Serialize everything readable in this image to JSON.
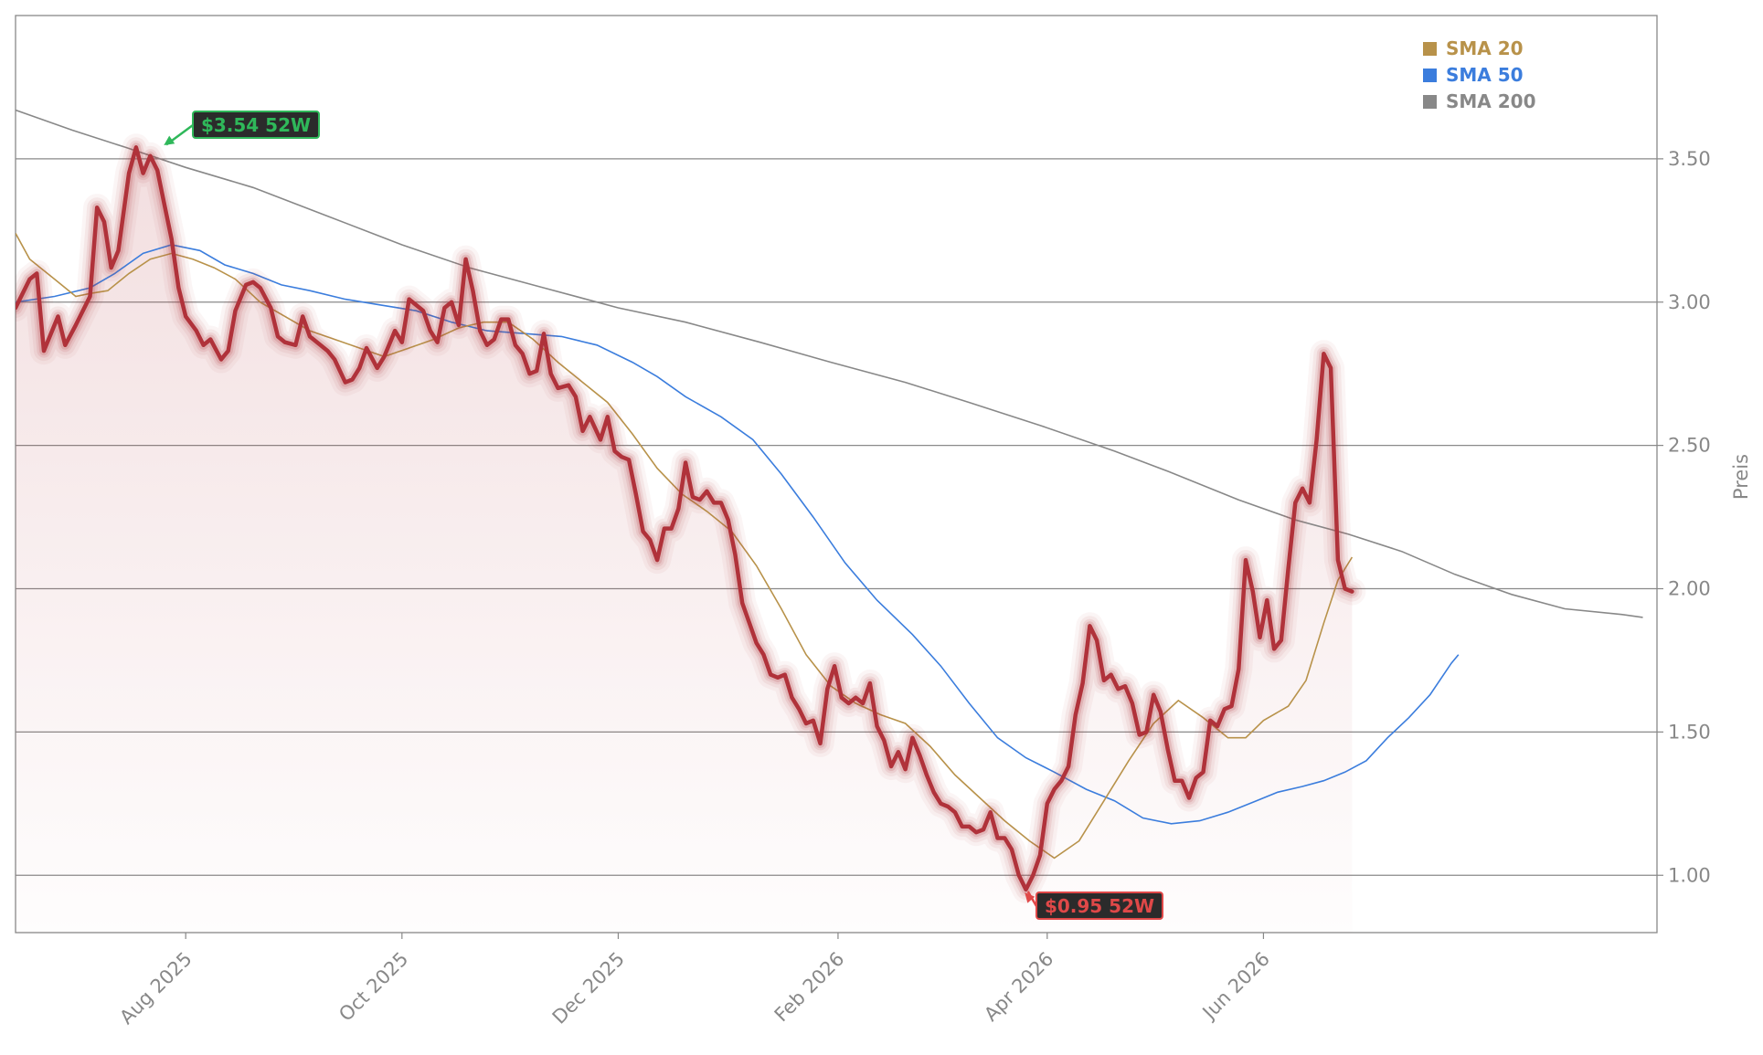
{
  "chart_data": {
    "type": "line",
    "ylabel": "Preis",
    "ylim": [
      0.8,
      4.0
    ],
    "y_ticks": [
      1.0,
      1.5,
      2.0,
      2.5,
      3.0,
      3.5
    ],
    "y_tick_labels": [
      "1.00",
      "1.50",
      "2.00",
      "2.50",
      "3.00",
      "3.50"
    ],
    "x_ticks": [
      "Aug 2025",
      "Oct 2025",
      "Dec 2025",
      "Feb 2026",
      "Apr 2026",
      "Jun 2026"
    ],
    "grid": "horizontal",
    "legend_position": "top-right",
    "colors": {
      "price": "#b0323a",
      "sma20": "#b8924a",
      "sma50": "#3b7ddd",
      "sma200": "#888888",
      "high_label": "#2fb85a",
      "low_label": "#e04848"
    },
    "legend": [
      {
        "label": "SMA 20",
        "color": "#b8924a"
      },
      {
        "label": "SMA 50",
        "color": "#3b7ddd"
      },
      {
        "label": "SMA 200",
        "color": "#888888"
      }
    ],
    "annotations": {
      "high": {
        "text": "$3.54 52W",
        "date": "2025-07-25",
        "value": 3.54
      },
      "low": {
        "text": "$0.95 52W",
        "date": "2026-03-25",
        "value": 0.95
      }
    },
    "price": [
      [
        "2025-06-14",
        2.98
      ],
      [
        "2025-06-18",
        3.08
      ],
      [
        "2025-06-20",
        3.1
      ],
      [
        "2025-06-22",
        2.83
      ],
      [
        "2025-06-26",
        2.95
      ],
      [
        "2025-06-28",
        2.85
      ],
      [
        "2025-07-01",
        2.92
      ],
      [
        "2025-07-05",
        3.02
      ],
      [
        "2025-07-07",
        3.33
      ],
      [
        "2025-07-09",
        3.28
      ],
      [
        "2025-07-11",
        3.12
      ],
      [
        "2025-07-13",
        3.18
      ],
      [
        "2025-07-16",
        3.45
      ],
      [
        "2025-07-18",
        3.54
      ],
      [
        "2025-07-20",
        3.45
      ],
      [
        "2025-07-22",
        3.51
      ],
      [
        "2025-07-24",
        3.46
      ],
      [
        "2025-07-26",
        3.34
      ],
      [
        "2025-07-28",
        3.22
      ],
      [
        "2025-07-30",
        3.05
      ],
      [
        "2025-08-01",
        2.95
      ],
      [
        "2025-08-04",
        2.9
      ],
      [
        "2025-08-06",
        2.85
      ],
      [
        "2025-08-08",
        2.87
      ],
      [
        "2025-08-11",
        2.8
      ],
      [
        "2025-08-13",
        2.83
      ],
      [
        "2025-08-15",
        2.97
      ],
      [
        "2025-08-18",
        3.06
      ],
      [
        "2025-08-20",
        3.07
      ],
      [
        "2025-08-22",
        3.05
      ],
      [
        "2025-08-25",
        2.98
      ],
      [
        "2025-08-27",
        2.88
      ],
      [
        "2025-08-29",
        2.86
      ],
      [
        "2025-09-01",
        2.85
      ],
      [
        "2025-09-03",
        2.95
      ],
      [
        "2025-09-05",
        2.88
      ],
      [
        "2025-09-08",
        2.85
      ],
      [
        "2025-09-10",
        2.83
      ],
      [
        "2025-09-12",
        2.8
      ],
      [
        "2025-09-15",
        2.72
      ],
      [
        "2025-09-17",
        2.73
      ],
      [
        "2025-09-19",
        2.77
      ],
      [
        "2025-09-21",
        2.84
      ],
      [
        "2025-09-24",
        2.77
      ],
      [
        "2025-09-26",
        2.81
      ],
      [
        "2025-09-29",
        2.9
      ],
      [
        "2025-10-01",
        2.86
      ],
      [
        "2025-10-03",
        3.01
      ],
      [
        "2025-10-05",
        2.99
      ],
      [
        "2025-10-07",
        2.97
      ],
      [
        "2025-10-09",
        2.9
      ],
      [
        "2025-10-11",
        2.86
      ],
      [
        "2025-10-13",
        2.98
      ],
      [
        "2025-10-15",
        3.0
      ],
      [
        "2025-10-17",
        2.92
      ],
      [
        "2025-10-19",
        3.15
      ],
      [
        "2025-10-21",
        3.04
      ],
      [
        "2025-10-23",
        2.9
      ],
      [
        "2025-10-25",
        2.85
      ],
      [
        "2025-10-27",
        2.87
      ],
      [
        "2025-10-29",
        2.94
      ],
      [
        "2025-10-31",
        2.94
      ],
      [
        "2025-11-02",
        2.85
      ],
      [
        "2025-11-04",
        2.82
      ],
      [
        "2025-11-06",
        2.75
      ],
      [
        "2025-11-08",
        2.76
      ],
      [
        "2025-11-10",
        2.89
      ],
      [
        "2025-11-12",
        2.75
      ],
      [
        "2025-11-14",
        2.7
      ],
      [
        "2025-11-17",
        2.71
      ],
      [
        "2025-11-19",
        2.67
      ],
      [
        "2025-11-21",
        2.55
      ],
      [
        "2025-11-23",
        2.6
      ],
      [
        "2025-11-26",
        2.52
      ],
      [
        "2025-11-28",
        2.6
      ],
      [
        "2025-11-30",
        2.48
      ],
      [
        "2025-12-02",
        2.46
      ],
      [
        "2025-12-04",
        2.45
      ],
      [
        "2025-12-06",
        2.33
      ],
      [
        "2025-12-08",
        2.2
      ],
      [
        "2025-12-10",
        2.17
      ],
      [
        "2025-12-12",
        2.1
      ],
      [
        "2025-12-14",
        2.21
      ],
      [
        "2025-12-16",
        2.21
      ],
      [
        "2025-12-18",
        2.28
      ],
      [
        "2025-12-20",
        2.44
      ],
      [
        "2025-12-22",
        2.32
      ],
      [
        "2025-12-24",
        2.31
      ],
      [
        "2025-12-26",
        2.34
      ],
      [
        "2025-12-28",
        2.3
      ],
      [
        "2025-12-30",
        2.3
      ],
      [
        "2026-01-01",
        2.24
      ],
      [
        "2026-01-03",
        2.12
      ],
      [
        "2026-01-05",
        1.95
      ],
      [
        "2026-01-07",
        1.88
      ],
      [
        "2026-01-09",
        1.81
      ],
      [
        "2026-01-11",
        1.77
      ],
      [
        "2026-01-13",
        1.7
      ],
      [
        "2026-01-15",
        1.69
      ],
      [
        "2026-01-17",
        1.7
      ],
      [
        "2026-01-19",
        1.62
      ],
      [
        "2026-01-21",
        1.58
      ],
      [
        "2026-01-23",
        1.53
      ],
      [
        "2026-01-25",
        1.54
      ],
      [
        "2026-01-27",
        1.46
      ],
      [
        "2026-01-29",
        1.65
      ],
      [
        "2026-01-31",
        1.73
      ],
      [
        "2026-02-02",
        1.62
      ],
      [
        "2026-02-04",
        1.6
      ],
      [
        "2026-02-06",
        1.62
      ],
      [
        "2026-02-08",
        1.6
      ],
      [
        "2026-02-10",
        1.67
      ],
      [
        "2026-02-12",
        1.52
      ],
      [
        "2026-02-14",
        1.47
      ],
      [
        "2026-02-16",
        1.38
      ],
      [
        "2026-02-18",
        1.43
      ],
      [
        "2026-02-20",
        1.37
      ],
      [
        "2026-02-22",
        1.48
      ],
      [
        "2026-02-24",
        1.42
      ],
      [
        "2026-02-26",
        1.35
      ],
      [
        "2026-02-28",
        1.29
      ],
      [
        "2026-03-02",
        1.25
      ],
      [
        "2026-03-04",
        1.24
      ],
      [
        "2026-03-06",
        1.22
      ],
      [
        "2026-03-08",
        1.17
      ],
      [
        "2026-03-10",
        1.17
      ],
      [
        "2026-03-12",
        1.15
      ],
      [
        "2026-03-14",
        1.16
      ],
      [
        "2026-03-16",
        1.22
      ],
      [
        "2026-03-18",
        1.13
      ],
      [
        "2026-03-20",
        1.13
      ],
      [
        "2026-03-22",
        1.09
      ],
      [
        "2026-03-24",
        1.0
      ],
      [
        "2026-03-26",
        0.95
      ],
      [
        "2026-03-28",
        1.0
      ],
      [
        "2026-03-30",
        1.07
      ],
      [
        "2026-04-01",
        1.25
      ],
      [
        "2026-04-03",
        1.3
      ],
      [
        "2026-04-05",
        1.33
      ],
      [
        "2026-04-07",
        1.38
      ],
      [
        "2026-04-09",
        1.56
      ],
      [
        "2026-04-11",
        1.67
      ],
      [
        "2026-04-13",
        1.87
      ],
      [
        "2026-04-15",
        1.82
      ],
      [
        "2026-04-17",
        1.68
      ],
      [
        "2026-04-19",
        1.7
      ],
      [
        "2026-04-21",
        1.65
      ],
      [
        "2026-04-23",
        1.66
      ],
      [
        "2026-04-25",
        1.6
      ],
      [
        "2026-04-27",
        1.49
      ],
      [
        "2026-04-29",
        1.5
      ],
      [
        "2026-05-01",
        1.63
      ],
      [
        "2026-05-03",
        1.57
      ],
      [
        "2026-05-05",
        1.44
      ],
      [
        "2026-05-07",
        1.33
      ],
      [
        "2026-05-09",
        1.33
      ],
      [
        "2026-05-11",
        1.27
      ],
      [
        "2026-05-13",
        1.34
      ],
      [
        "2026-05-15",
        1.36
      ],
      [
        "2026-05-17",
        1.54
      ],
      [
        "2026-05-19",
        1.52
      ],
      [
        "2026-05-21",
        1.58
      ],
      [
        "2026-05-23",
        1.59
      ],
      [
        "2026-05-25",
        1.72
      ],
      [
        "2026-05-27",
        2.1
      ],
      [
        "2026-05-29",
        1.99
      ],
      [
        "2026-05-31",
        1.83
      ],
      [
        "2026-06-02",
        1.96
      ],
      [
        "2026-06-04",
        1.79
      ],
      [
        "2026-06-06",
        1.82
      ],
      [
        "2026-06-08",
        2.07
      ],
      [
        "2026-06-10",
        2.3
      ],
      [
        "2026-06-12",
        2.35
      ],
      [
        "2026-06-14",
        2.3
      ],
      [
        "2026-06-16",
        2.52
      ],
      [
        "2026-06-18",
        2.82
      ],
      [
        "2026-06-20",
        2.77
      ],
      [
        "2026-06-22",
        2.1
      ],
      [
        "2026-06-24",
        2.0
      ],
      [
        "2026-06-26",
        1.99
      ]
    ],
    "sma20": [
      [
        "2025-06-14",
        3.24
      ],
      [
        "2025-06-18",
        3.15
      ],
      [
        "2025-06-25",
        3.08
      ],
      [
        "2025-07-01",
        3.02
      ],
      [
        "2025-07-05",
        3.03
      ],
      [
        "2025-07-10",
        3.04
      ],
      [
        "2025-07-16",
        3.1
      ],
      [
        "2025-07-22",
        3.15
      ],
      [
        "2025-07-28",
        3.17
      ],
      [
        "2025-08-03",
        3.15
      ],
      [
        "2025-08-09",
        3.12
      ],
      [
        "2025-08-15",
        3.08
      ],
      [
        "2025-08-22",
        3.0
      ],
      [
        "2025-08-29",
        2.95
      ],
      [
        "2025-09-05",
        2.9
      ],
      [
        "2025-09-12",
        2.87
      ],
      [
        "2025-09-19",
        2.84
      ],
      [
        "2025-09-26",
        2.81
      ],
      [
        "2025-10-03",
        2.84
      ],
      [
        "2025-10-10",
        2.87
      ],
      [
        "2025-10-17",
        2.91
      ],
      [
        "2025-10-24",
        2.93
      ],
      [
        "2025-10-31",
        2.93
      ],
      [
        "2025-11-07",
        2.87
      ],
      [
        "2025-11-14",
        2.79
      ],
      [
        "2025-11-21",
        2.72
      ],
      [
        "2025-11-28",
        2.65
      ],
      [
        "2025-12-05",
        2.54
      ],
      [
        "2025-12-12",
        2.42
      ],
      [
        "2025-12-19",
        2.33
      ],
      [
        "2025-12-26",
        2.27
      ],
      [
        "2026-01-02",
        2.2
      ],
      [
        "2026-01-09",
        2.08
      ],
      [
        "2026-01-16",
        1.93
      ],
      [
        "2026-01-23",
        1.77
      ],
      [
        "2026-01-30",
        1.66
      ],
      [
        "2026-02-06",
        1.6
      ],
      [
        "2026-02-13",
        1.56
      ],
      [
        "2026-02-20",
        1.53
      ],
      [
        "2026-02-27",
        1.45
      ],
      [
        "2026-03-06",
        1.35
      ],
      [
        "2026-03-13",
        1.27
      ],
      [
        "2026-03-20",
        1.19
      ],
      [
        "2026-03-27",
        1.12
      ],
      [
        "2026-04-03",
        1.06
      ],
      [
        "2026-04-10",
        1.12
      ],
      [
        "2026-04-17",
        1.26
      ],
      [
        "2026-04-24",
        1.4
      ],
      [
        "2026-05-01",
        1.53
      ],
      [
        "2026-05-08",
        1.61
      ],
      [
        "2026-05-15",
        1.55
      ],
      [
        "2026-05-22",
        1.48
      ],
      [
        "2026-05-27",
        1.48
      ],
      [
        "2026-06-01",
        1.54
      ],
      [
        "2026-06-08",
        1.59
      ],
      [
        "2026-06-13",
        1.68
      ],
      [
        "2026-06-18",
        1.88
      ],
      [
        "2026-06-22",
        2.03
      ],
      [
        "2026-06-26",
        2.11
      ]
    ],
    "sma50": [
      [
        "2025-06-14",
        3.0
      ],
      [
        "2025-06-25",
        3.02
      ],
      [
        "2025-07-05",
        3.05
      ],
      [
        "2025-07-12",
        3.1
      ],
      [
        "2025-07-20",
        3.17
      ],
      [
        "2025-07-28",
        3.2
      ],
      [
        "2025-08-05",
        3.18
      ],
      [
        "2025-08-12",
        3.13
      ],
      [
        "2025-08-20",
        3.1
      ],
      [
        "2025-08-28",
        3.06
      ],
      [
        "2025-09-05",
        3.04
      ],
      [
        "2025-09-15",
        3.01
      ],
      [
        "2025-09-25",
        2.99
      ],
      [
        "2025-10-05",
        2.97
      ],
      [
        "2025-10-15",
        2.93
      ],
      [
        "2025-10-25",
        2.9
      ],
      [
        "2025-11-05",
        2.89
      ],
      [
        "2025-11-15",
        2.88
      ],
      [
        "2025-11-25",
        2.85
      ],
      [
        "2025-12-05",
        2.79
      ],
      [
        "2025-12-12",
        2.74
      ],
      [
        "2025-12-20",
        2.67
      ],
      [
        "2025-12-30",
        2.6
      ],
      [
        "2026-01-08",
        2.52
      ],
      [
        "2026-01-16",
        2.4
      ],
      [
        "2026-01-25",
        2.25
      ],
      [
        "2026-02-03",
        2.09
      ],
      [
        "2026-02-12",
        1.96
      ],
      [
        "2026-02-22",
        1.84
      ],
      [
        "2026-03-02",
        1.73
      ],
      [
        "2026-03-10",
        1.6
      ],
      [
        "2026-03-18",
        1.48
      ],
      [
        "2026-03-26",
        1.41
      ],
      [
        "2026-04-03",
        1.36
      ],
      [
        "2026-04-12",
        1.3
      ],
      [
        "2026-04-20",
        1.26
      ],
      [
        "2026-04-28",
        1.2
      ],
      [
        "2026-05-06",
        1.18
      ],
      [
        "2026-05-14",
        1.19
      ],
      [
        "2026-05-22",
        1.22
      ],
      [
        "2026-05-30",
        1.26
      ],
      [
        "2026-06-05",
        1.29
      ],
      [
        "2026-06-12",
        1.31
      ],
      [
        "2026-06-18",
        1.33
      ],
      [
        "2026-06-24",
        1.36
      ],
      [
        "2026-06-30",
        1.4
      ],
      [
        "2026-07-06",
        1.48
      ],
      [
        "2026-07-12",
        1.55
      ],
      [
        "2026-07-18",
        1.63
      ],
      [
        "2026-07-24",
        1.74
      ],
      [
        "2026-07-26",
        1.77
      ]
    ],
    "sma200": [
      [
        "2025-06-14",
        3.67
      ],
      [
        "2025-06-30",
        3.6
      ],
      [
        "2025-07-15",
        3.54
      ],
      [
        "2025-08-01",
        3.47
      ],
      [
        "2025-08-20",
        3.4
      ],
      [
        "2025-09-10",
        3.3
      ],
      [
        "2025-10-01",
        3.2
      ],
      [
        "2025-10-20",
        3.12
      ],
      [
        "2025-11-10",
        3.05
      ],
      [
        "2025-12-01",
        2.98
      ],
      [
        "2025-12-20",
        2.93
      ],
      [
        "2026-01-10",
        2.86
      ],
      [
        "2026-01-30",
        2.79
      ],
      [
        "2026-02-20",
        2.72
      ],
      [
        "2026-03-10",
        2.65
      ],
      [
        "2026-03-30",
        2.57
      ],
      [
        "2026-04-20",
        2.48
      ],
      [
        "2026-05-05",
        2.41
      ],
      [
        "2026-05-25",
        2.31
      ],
      [
        "2026-06-10",
        2.24
      ],
      [
        "2026-06-25",
        2.19
      ],
      [
        "2026-07-10",
        2.13
      ],
      [
        "2026-07-25",
        2.05
      ],
      [
        "2026-08-10",
        1.98
      ],
      [
        "2026-08-25",
        1.93
      ],
      [
        "2026-09-10",
        1.91
      ],
      [
        "2026-09-16",
        1.9
      ]
    ]
  }
}
